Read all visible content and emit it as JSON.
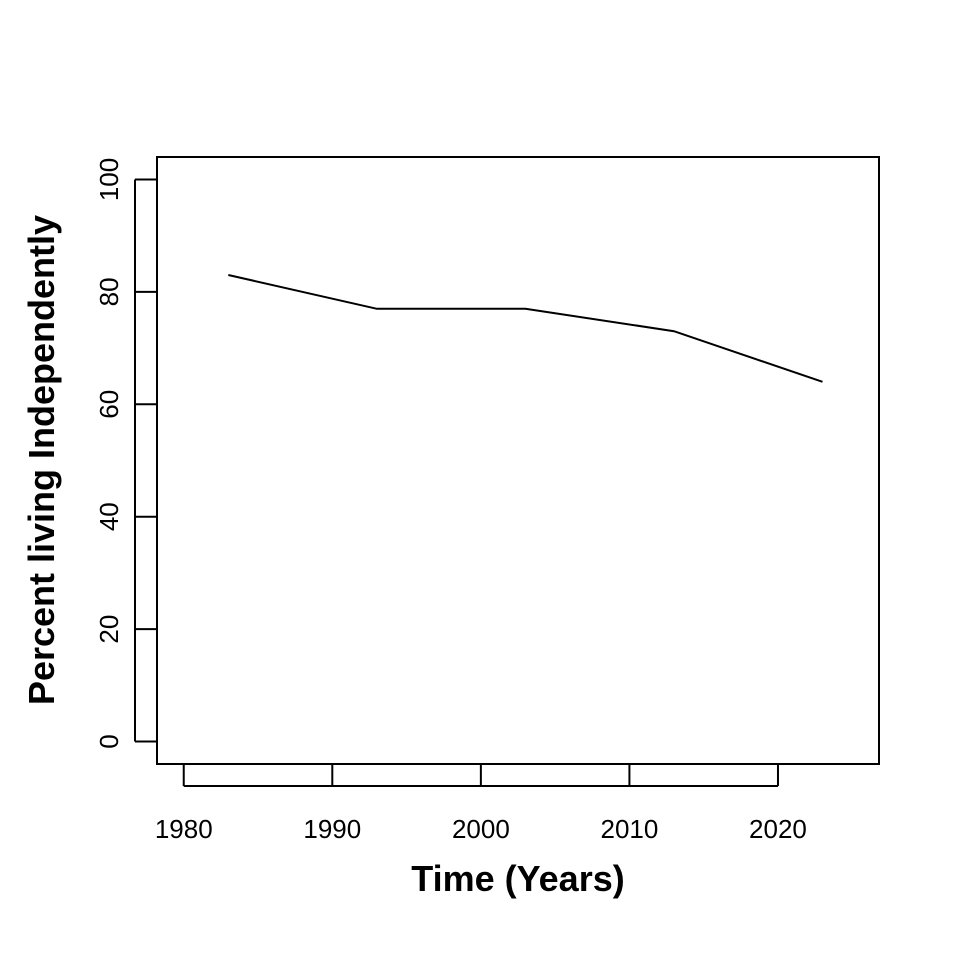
{
  "chart_data": {
    "type": "line",
    "title": "",
    "xlabel": "Time (Years)",
    "ylabel": "Percent living Independently",
    "x": [
      1983,
      1993,
      2003,
      2013,
      2023
    ],
    "series": [
      {
        "values": [
          83,
          77,
          77,
          73,
          64
        ]
      }
    ],
    "xlim": [
      1978.2,
      2026.8
    ],
    "ylim": [
      -4,
      104
    ],
    "xticks": [
      1980,
      1990,
      2000,
      2010,
      2020
    ],
    "yticks": [
      0,
      20,
      40,
      60,
      80,
      100
    ],
    "grid": false,
    "line_color": "#000000"
  }
}
